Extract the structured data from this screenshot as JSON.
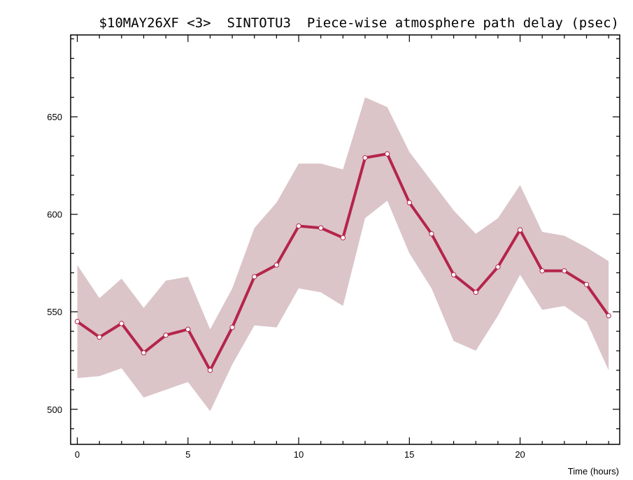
{
  "chart_data": {
    "type": "line",
    "title": "$10MAY26XF <3>  SINTOTU3  Piece-wise atmosphere path delay (psec)",
    "xlabel": "Time (hours)",
    "ylabel": "",
    "xlim": [
      -0.3,
      24.5
    ],
    "ylim": [
      482,
      692
    ],
    "x_ticks": [
      0,
      5,
      10,
      15,
      20
    ],
    "y_ticks": [
      500,
      550,
      600,
      650
    ],
    "grid": false,
    "series": [
      {
        "x": [
          0,
          1,
          2,
          3,
          4,
          5,
          6,
          7,
          8,
          9,
          10,
          11,
          12,
          13,
          14,
          15,
          16,
          17,
          18,
          19,
          20,
          21,
          22,
          23,
          24
        ],
        "values": [
          545,
          537,
          544,
          529,
          538,
          541,
          520,
          542,
          568,
          574,
          594,
          593,
          588,
          629,
          631,
          606,
          590,
          569,
          560,
          573,
          592,
          571,
          571,
          564,
          548
        ],
        "band_upper": [
          574,
          557,
          567,
          552,
          566,
          568,
          541,
          562,
          593,
          606,
          626,
          626,
          623,
          660,
          655,
          632,
          617,
          602,
          590,
          598,
          615,
          591,
          589,
          583,
          576
        ],
        "band_lower": [
          516,
          517,
          521,
          506,
          510,
          514,
          499,
          523,
          543,
          542,
          562,
          560,
          553,
          598,
          607,
          580,
          562,
          535,
          530,
          548,
          569,
          551,
          553,
          545,
          520
        ]
      }
    ],
    "colors": {
      "line": "#b5244a",
      "band": "#dbc5c9",
      "marker_fill": "#ffffff",
      "axis": "#000000"
    }
  }
}
